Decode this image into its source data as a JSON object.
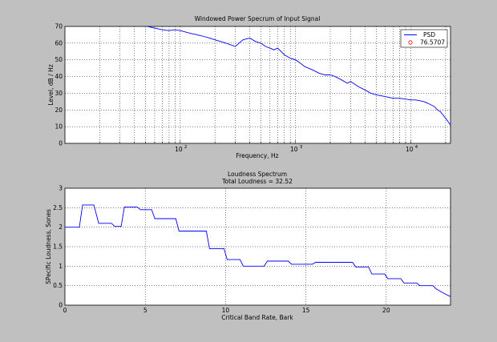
{
  "figure": {
    "background": "#c0c0c0"
  },
  "chart_data": [
    {
      "type": "line",
      "title": "Windowed Power Specrum of Input Signal",
      "xlabel": "Frequency, Hz",
      "ylabel": "Level, dB / Hz",
      "xscale": "log",
      "xlim": [
        10,
        22050
      ],
      "ylim": [
        0,
        70
      ],
      "grid": true,
      "yticks": [
        0,
        10,
        20,
        30,
        40,
        50,
        60,
        70
      ],
      "xticks": [
        {
          "base": "10",
          "exp": "2",
          "value": 100
        },
        {
          "base": "10",
          "exp": "3",
          "value": 1000
        },
        {
          "base": "10",
          "exp": "4",
          "value": 10000
        }
      ],
      "legend": {
        "position": "top-right",
        "entries": [
          {
            "label": "PSD",
            "marker": "line",
            "color": "#0000ff"
          },
          {
            "label": "76.5707",
            "marker": "circle",
            "color": "#ff0000"
          }
        ]
      },
      "series": [
        {
          "name": "PSD",
          "color": "#0000ff",
          "x": [
            52,
            60,
            70,
            80,
            90,
            100,
            120,
            140,
            160,
            180,
            200,
            250,
            300,
            350,
            400,
            450,
            500,
            550,
            600,
            650,
            700,
            800,
            900,
            1000,
            1100,
            1200,
            1400,
            1600,
            1800,
            2000,
            2200,
            2500,
            2800,
            3000,
            3500,
            4000,
            4500,
            5000,
            6000,
            7000,
            8000,
            9000,
            10000,
            11000,
            12000,
            13000,
            14000,
            15000,
            16000,
            17000,
            18000,
            19000,
            20000,
            21000,
            22050
          ],
          "y": [
            70,
            69,
            68,
            67.5,
            68,
            67.5,
            66,
            65,
            64,
            63,
            62,
            60,
            58,
            62,
            63,
            61,
            60,
            58,
            57,
            56,
            57,
            53,
            51,
            50,
            48,
            46,
            44,
            42,
            41,
            41,
            40,
            38,
            36,
            37,
            34,
            32,
            30,
            29,
            28,
            27,
            27,
            26.5,
            26,
            26,
            25.5,
            25,
            24,
            23,
            22,
            20,
            19,
            17,
            15,
            13,
            11
          ]
        }
      ]
    },
    {
      "type": "line",
      "title": "Loudness Spectrum",
      "subtitle": "Total Loudness = 32.52",
      "xlabel": "Critical Band Rate, Bark",
      "ylabel": "SPecific Loudness, Sones",
      "xlim": [
        0,
        24
      ],
      "ylim": [
        0,
        3
      ],
      "grid": true,
      "xticks": [
        0,
        5,
        10,
        15,
        20
      ],
      "yticks": [
        "0",
        "0.5",
        "1",
        "1.5",
        "2",
        "2.5",
        "3"
      ],
      "series": [
        {
          "name": "Specific Loudness",
          "color": "#0000ff",
          "x": [
            0,
            0.9,
            1.1,
            1.8,
            2.1,
            2.9,
            3.1,
            3.5,
            3.7,
            4.5,
            4.7,
            5.4,
            5.6,
            6.9,
            7.1,
            8.8,
            9.0,
            9.9,
            10.1,
            10.9,
            11.1,
            12.4,
            12.6,
            13.9,
            14.1,
            15.4,
            15.6,
            17.9,
            18.1,
            18.9,
            19.1,
            19.9,
            20.1,
            20.9,
            21.1,
            21.9,
            22.1,
            22.9,
            23.1,
            23.6,
            24.0
          ],
          "y": [
            2.0,
            2.0,
            2.57,
            2.57,
            2.1,
            2.1,
            2.02,
            2.02,
            2.52,
            2.52,
            2.45,
            2.45,
            2.22,
            2.22,
            1.9,
            1.9,
            1.45,
            1.45,
            1.17,
            1.17,
            1.0,
            1.0,
            1.13,
            1.13,
            1.05,
            1.05,
            1.1,
            1.1,
            0.98,
            0.98,
            0.8,
            0.8,
            0.68,
            0.68,
            0.57,
            0.57,
            0.5,
            0.5,
            0.42,
            0.3,
            0.22
          ]
        }
      ]
    }
  ]
}
